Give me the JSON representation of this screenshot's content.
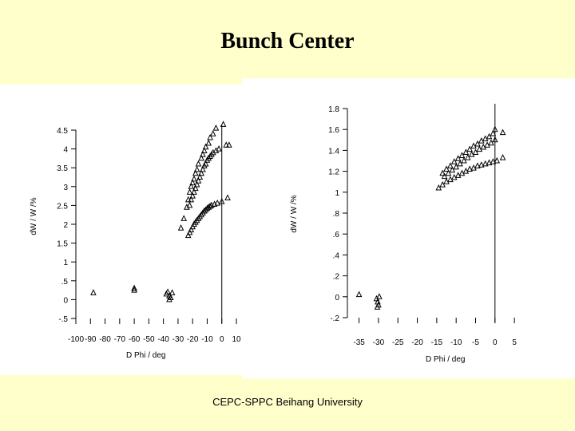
{
  "slide": {
    "title": "Bunch Center",
    "footer": "CEPC-SPPC Beihang University"
  },
  "colors": {
    "background": "#FFFFCC",
    "plot_background": "#FFFFFF",
    "ink": "#000000"
  },
  "chart_data": [
    {
      "type": "scatter",
      "xlabel": "D Phi  / deg",
      "ylabel": "dW  /  W      /%",
      "xlim": [
        -100,
        10
      ],
      "ylim": [
        -0.5,
        4.5
      ],
      "x_ticks": [
        -100,
        -90,
        -80,
        -70,
        -60,
        -50,
        -40,
        -30,
        -20,
        -10,
        0,
        10
      ],
      "x_tick_labels": [
        "-100",
        "-90",
        "-80",
        "-70",
        "-60",
        "-50",
        "-40",
        "-30",
        "-20",
        "-10",
        "0",
        "10"
      ],
      "y_ticks": [
        -0.5,
        0,
        0.5,
        1,
        1.5,
        2,
        2.5,
        3,
        3.5,
        4,
        4.5
      ],
      "y_tick_labels": [
        "-.5",
        "0",
        ".5",
        "1",
        "1.5",
        "2",
        "2.5",
        "3",
        "3.5",
        "4",
        "4.5"
      ],
      "vline_x": 0,
      "grid": false,
      "marker": "triangle",
      "series": [
        {
          "points": [
            [
              -88,
              0.18
            ],
            [
              -60,
              0.25
            ],
            [
              -60,
              0.3
            ],
            [
              -38,
              0.15
            ],
            [
              -37,
              0.2
            ],
            [
              -36,
              0.1
            ],
            [
              -35,
              0.05
            ],
            [
              -34,
              0.18
            ],
            [
              -36,
              0.0
            ],
            [
              -28,
              1.9
            ],
            [
              -26,
              2.15
            ],
            [
              -24,
              2.45
            ],
            [
              -23,
              2.65
            ],
            [
              -22,
              2.85
            ],
            [
              -21,
              3.0
            ],
            [
              -20,
              3.1
            ],
            [
              -19,
              3.2
            ],
            [
              -18,
              3.35
            ],
            [
              -17,
              3.45
            ],
            [
              -16,
              3.6
            ],
            [
              -14,
              3.75
            ],
            [
              -13,
              3.85
            ],
            [
              -12,
              3.95
            ],
            [
              -11,
              4.05
            ],
            [
              -9,
              4.15
            ],
            [
              -8,
              4.3
            ],
            [
              -6,
              4.4
            ],
            [
              -4,
              4.55
            ],
            [
              1,
              4.65
            ],
            [
              -22,
              2.5
            ],
            [
              -21,
              2.65
            ],
            [
              -20,
              2.75
            ],
            [
              -19,
              2.85
            ],
            [
              -18,
              2.95
            ],
            [
              -17,
              3.05
            ],
            [
              -16,
              3.15
            ],
            [
              -15,
              3.25
            ],
            [
              -14,
              3.35
            ],
            [
              -13,
              3.45
            ],
            [
              -12,
              3.55
            ],
            [
              -11,
              3.6
            ],
            [
              -10,
              3.7
            ],
            [
              -9,
              3.75
            ],
            [
              -8,
              3.8
            ],
            [
              -7,
              3.85
            ],
            [
              -6,
              3.9
            ],
            [
              -4,
              3.95
            ],
            [
              -2,
              4.0
            ],
            [
              3,
              4.1
            ],
            [
              5,
              4.1
            ],
            [
              -23,
              1.7
            ],
            [
              -22,
              1.78
            ],
            [
              -21,
              1.85
            ],
            [
              -20,
              1.93
            ],
            [
              -19,
              2.0
            ],
            [
              -18,
              2.05
            ],
            [
              -17,
              2.1
            ],
            [
              -16,
              2.15
            ],
            [
              -15,
              2.2
            ],
            [
              -14,
              2.25
            ],
            [
              -13,
              2.3
            ],
            [
              -12,
              2.35
            ],
            [
              -11,
              2.38
            ],
            [
              -10,
              2.42
            ],
            [
              -9,
              2.45
            ],
            [
              -8,
              2.48
            ],
            [
              -7,
              2.5
            ],
            [
              -5,
              2.53
            ],
            [
              -3,
              2.56
            ],
            [
              0,
              2.6
            ],
            [
              4,
              2.7
            ]
          ]
        }
      ]
    },
    {
      "type": "scatter",
      "xlabel": "D Phi  / deg",
      "ylabel": "dW  /  W      /%",
      "xlim": [
        -38,
        6
      ],
      "ylim": [
        -0.2,
        1.8
      ],
      "x_ticks": [
        -35,
        -30,
        -25,
        -20,
        -15,
        -10,
        -5,
        0,
        5
      ],
      "x_tick_labels": [
        "-35",
        "-30",
        "-25",
        "-20",
        "-15",
        "-10",
        "-5",
        "0",
        "5"
      ],
      "y_ticks": [
        -0.2,
        0,
        0.2,
        0.4,
        0.6,
        0.8,
        1.0,
        1.2,
        1.4,
        1.6,
        1.8
      ],
      "y_tick_labels": [
        "-.2",
        "0",
        ".2",
        ".4",
        ".6",
        ".8",
        "1",
        "1.2",
        "1.4",
        "1.6",
        "1.8"
      ],
      "vline_x": 0,
      "grid": false,
      "marker": "triangle",
      "series": [
        {
          "points": [
            [
              -35,
              0.02
            ],
            [
              -30.5,
              -0.02
            ],
            [
              -30.2,
              -0.05
            ],
            [
              -30,
              -0.08
            ],
            [
              -29.8,
              0.0
            ],
            [
              -30.3,
              -0.1
            ],
            [
              -13.5,
              1.18
            ],
            [
              -12.5,
              1.22
            ],
            [
              -11.5,
              1.25
            ],
            [
              -10.5,
              1.29
            ],
            [
              -9.5,
              1.32
            ],
            [
              -8.5,
              1.35
            ],
            [
              -7.5,
              1.38
            ],
            [
              -6.5,
              1.41
            ],
            [
              -5.5,
              1.44
            ],
            [
              -4.5,
              1.46
            ],
            [
              -3.5,
              1.49
            ],
            [
              -2.5,
              1.51
            ],
            [
              -1.5,
              1.53
            ],
            [
              -0.5,
              1.56
            ],
            [
              0,
              1.6
            ],
            [
              2,
              1.57
            ],
            [
              -13,
              1.15
            ],
            [
              -12,
              1.18
            ],
            [
              -11,
              1.21
            ],
            [
              -10,
              1.24
            ],
            [
              -9,
              1.27
            ],
            [
              -8,
              1.3
            ],
            [
              -7,
              1.33
            ],
            [
              -6,
              1.36
            ],
            [
              -5,
              1.38
            ],
            [
              -4,
              1.41
            ],
            [
              -3,
              1.43
            ],
            [
              -2,
              1.45
            ],
            [
              -1,
              1.47
            ],
            [
              0,
              1.5
            ],
            [
              -14.5,
              1.04
            ],
            [
              -13.5,
              1.07
            ],
            [
              -12.5,
              1.1
            ],
            [
              -11.5,
              1.12
            ],
            [
              -10.5,
              1.14
            ],
            [
              -9.5,
              1.16
            ],
            [
              -8.5,
              1.18
            ],
            [
              -7.5,
              1.2
            ],
            [
              -6.5,
              1.22
            ],
            [
              -5.5,
              1.23
            ],
            [
              -4.5,
              1.25
            ],
            [
              -3.5,
              1.26
            ],
            [
              -2.5,
              1.27
            ],
            [
              -1.5,
              1.28
            ],
            [
              -0.5,
              1.29
            ],
            [
              0.5,
              1.3
            ],
            [
              2,
              1.33
            ]
          ]
        }
      ]
    }
  ]
}
